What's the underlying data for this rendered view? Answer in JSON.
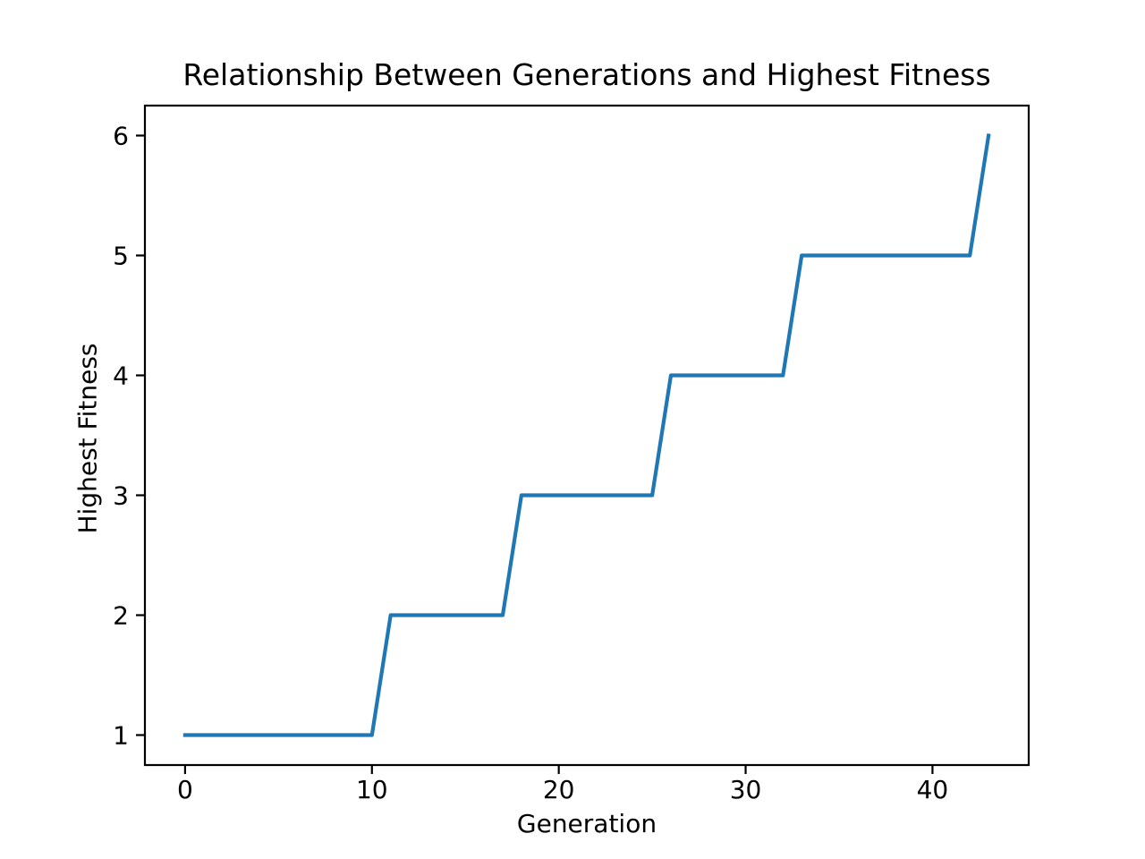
{
  "chart_data": {
    "type": "line",
    "title": "Relationship Between Generations and Highest Fitness",
    "xlabel": "Generation",
    "ylabel": "Highest Fitness",
    "x": [
      0,
      1,
      2,
      3,
      4,
      5,
      6,
      7,
      8,
      9,
      10,
      11,
      12,
      13,
      14,
      15,
      16,
      17,
      18,
      19,
      20,
      21,
      22,
      23,
      24,
      25,
      26,
      27,
      28,
      29,
      30,
      31,
      32,
      33,
      34,
      35,
      36,
      37,
      38,
      39,
      40,
      41,
      42,
      43
    ],
    "y": [
      1,
      1,
      1,
      1,
      1,
      1,
      1,
      1,
      1,
      1,
      1,
      2,
      2,
      2,
      2,
      2,
      2,
      2,
      3,
      3,
      3,
      3,
      3,
      3,
      3,
      3,
      4,
      4,
      4,
      4,
      4,
      4,
      4,
      5,
      5,
      5,
      5,
      5,
      5,
      5,
      5,
      5,
      5,
      6
    ],
    "xticks": [
      0,
      10,
      20,
      30,
      40
    ],
    "yticks": [
      1,
      2,
      3,
      4,
      5,
      6
    ],
    "xlim": [
      -2.15,
      45.15
    ],
    "ylim": [
      0.75,
      6.25
    ],
    "grid": false,
    "legend": null,
    "line_color": "#1f77b4",
    "axis_color": "#000000",
    "background_color": "#ffffff"
  }
}
